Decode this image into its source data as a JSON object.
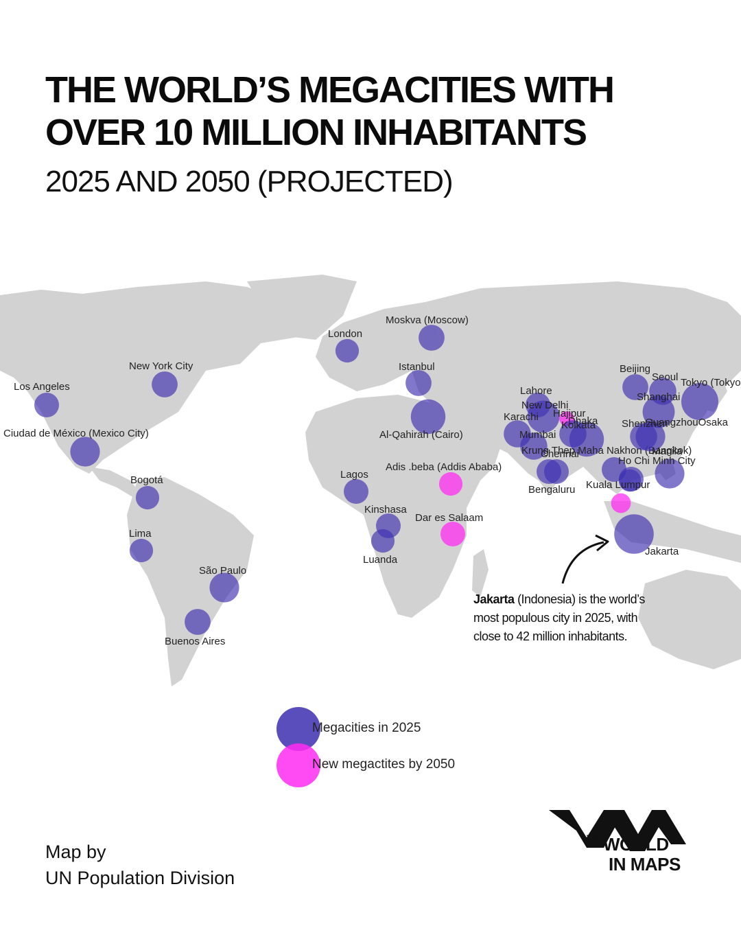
{
  "header": {
    "title_line1": "THE WORLD’S MEGACITIES WITH",
    "title_line2": "OVER 10 MILLION INHABITANTS",
    "subtitle": "2025 AND 2050 (PROJECTED)"
  },
  "colors": {
    "land": "#d2d2d2",
    "megacity_2025": "#3d2fb0",
    "new_megacity_2050": "#ff2cf2"
  },
  "cities": [
    {
      "name": "Los Angeles",
      "kind": "2025",
      "size": 1.0
    },
    {
      "name": "New York City",
      "kind": "2025",
      "size": 1.05
    },
    {
      "name": "Ciudad de México (Mexico City)",
      "kind": "2025",
      "size": 1.2
    },
    {
      "name": "Bogotá",
      "kind": "2025",
      "size": 0.95
    },
    {
      "name": "Lima",
      "kind": "2025",
      "size": 0.95
    },
    {
      "name": "São Paulo",
      "kind": "2025",
      "size": 1.2
    },
    {
      "name": "Buenos Aires",
      "kind": "2025",
      "size": 1.05
    },
    {
      "name": "London",
      "kind": "2025",
      "size": 0.95
    },
    {
      "name": "Moskva (Moscow)",
      "kind": "2025",
      "size": 1.05
    },
    {
      "name": "Istanbul",
      "kind": "2025",
      "size": 1.05
    },
    {
      "name": "Al-Qahirah (Cairo)",
      "kind": "2025",
      "size": 1.4
    },
    {
      "name": "Lagos",
      "kind": "2025",
      "size": 1.0
    },
    {
      "name": "Kinshasa",
      "kind": "2025",
      "size": 1.0
    },
    {
      "name": "Luanda",
      "kind": "2025",
      "size": 0.95
    },
    {
      "name": "Adis .beba (Addis Ababa)",
      "kind": "2050",
      "size": 0.95
    },
    {
      "name": "Dar es Salaam",
      "kind": "2050",
      "size": 1.0
    },
    {
      "name": "Lahore",
      "kind": "2025",
      "size": 1.0
    },
    {
      "name": "New Delhi",
      "kind": "2025",
      "size": 1.3
    },
    {
      "name": "Hajipur",
      "kind": "2050",
      "size": 0.6
    },
    {
      "name": "Karachi",
      "kind": "2025",
      "size": 1.1
    },
    {
      "name": "Dhaka",
      "kind": "2025",
      "size": 1.4
    },
    {
      "name": "Kolkata",
      "kind": "2025",
      "size": 1.1
    },
    {
      "name": "Mumbai",
      "kind": "2025",
      "size": 1.1
    },
    {
      "name": "Chennai",
      "kind": "2025",
      "size": 1.0
    },
    {
      "name": "Bengaluru",
      "kind": "2025",
      "size": 1.0
    },
    {
      "name": "Krung Thep Maha Nakhon (Bangkok)",
      "kind": "2025",
      "size": 1.0
    },
    {
      "name": "Beijing",
      "kind": "2025",
      "size": 1.05
    },
    {
      "name": "Seoul",
      "kind": "2025",
      "size": 1.1
    },
    {
      "name": "Tokyo (Tokyo)",
      "kind": "2025",
      "size": 1.5
    },
    {
      "name": "Shanghai",
      "kind": "2025",
      "size": 1.3
    },
    {
      "name": "GuangzhouOsaka",
      "kind": "2025",
      "size": 1.2
    },
    {
      "name": "Shenzhen",
      "kind": "2025",
      "size": 1.1
    },
    {
      "name": "Manila",
      "kind": "2025",
      "size": 1.2
    },
    {
      "name": "Ho Chi Minh City",
      "kind": "2025",
      "size": 1.0
    },
    {
      "name": "Kuala Lumpur",
      "kind": "2025",
      "size": 0.9
    },
    {
      "name": "Jakarta",
      "kind": "2025",
      "size": 1.6
    },
    {
      "name": "",
      "kind": "2050",
      "size": 0.8
    }
  ],
  "annotation": {
    "bold": "Jakarta",
    "text": " (Indonesia) is the world’s most populous city in 2025, with close to 42 million inhabitants."
  },
  "legend": {
    "item_2025": "Megacities in 2025",
    "item_2050": "New megactites by 2050"
  },
  "credit": {
    "line1": "Map by",
    "line2": "UN Population Division"
  },
  "logo": {
    "the": "THE",
    "world": "WORLD",
    "in_maps": "IN MAPS"
  }
}
